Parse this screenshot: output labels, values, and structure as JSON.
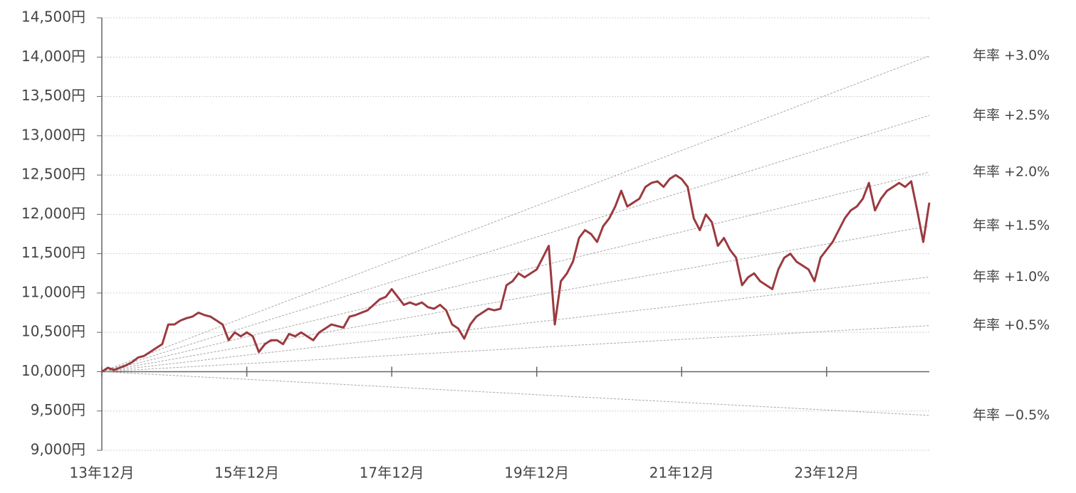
{
  "chart_data": {
    "type": "line",
    "x": [
      "2013-12",
      "2014-01",
      "2014-02",
      "2014-03",
      "2014-04",
      "2014-05",
      "2014-06",
      "2014-07",
      "2014-08",
      "2014-09",
      "2014-10",
      "2014-11",
      "2014-12",
      "2015-01",
      "2015-02",
      "2015-03",
      "2015-04",
      "2015-05",
      "2015-06",
      "2015-07",
      "2015-08",
      "2015-09",
      "2015-10",
      "2015-11",
      "2015-12",
      "2016-01",
      "2016-02",
      "2016-03",
      "2016-04",
      "2016-05",
      "2016-06",
      "2016-07",
      "2016-08",
      "2016-09",
      "2016-10",
      "2016-11",
      "2016-12",
      "2017-01",
      "2017-02",
      "2017-03",
      "2017-04",
      "2017-05",
      "2017-06",
      "2017-07",
      "2017-08",
      "2017-09",
      "2017-10",
      "2017-11",
      "2017-12",
      "2018-01",
      "2018-02",
      "2018-03",
      "2018-04",
      "2018-05",
      "2018-06",
      "2018-07",
      "2018-08",
      "2018-09",
      "2018-10",
      "2018-11",
      "2018-12",
      "2019-01",
      "2019-02",
      "2019-03",
      "2019-04",
      "2019-05",
      "2019-06",
      "2019-07",
      "2019-08",
      "2019-09",
      "2019-10",
      "2019-11",
      "2019-12",
      "2020-01",
      "2020-02",
      "2020-03",
      "2020-04",
      "2020-05",
      "2020-06",
      "2020-07",
      "2020-08",
      "2020-09",
      "2020-10",
      "2020-11",
      "2020-12",
      "2021-01",
      "2021-02",
      "2021-03",
      "2021-04",
      "2021-05",
      "2021-06",
      "2021-07",
      "2021-08",
      "2021-09",
      "2021-10",
      "2021-11",
      "2021-12",
      "2022-01",
      "2022-02",
      "2022-03",
      "2022-04",
      "2022-05",
      "2022-06",
      "2022-07",
      "2022-08",
      "2022-09",
      "2022-10",
      "2022-11",
      "2022-12",
      "2023-01",
      "2023-02",
      "2023-03",
      "2023-04",
      "2023-05",
      "2023-06",
      "2023-07",
      "2023-08",
      "2023-09",
      "2023-10",
      "2023-11",
      "2023-12",
      "2024-01",
      "2024-02",
      "2024-03",
      "2024-04",
      "2024-05",
      "2024-06",
      "2024-07",
      "2024-08",
      "2024-09",
      "2024-10",
      "2024-11",
      "2024-12",
      "2025-01",
      "2025-02",
      "2025-03",
      "2025-04",
      "2025-05"
    ],
    "series": [
      {
        "color": "#9b3a3f",
        "values": [
          10000,
          10050,
          10020,
          10050,
          10080,
          10120,
          10180,
          10200,
          10250,
          10300,
          10350,
          10600,
          10600,
          10650,
          10680,
          10700,
          10750,
          10720,
          10700,
          10650,
          10600,
          10400,
          10500,
          10450,
          10500,
          10450,
          10250,
          10350,
          10400,
          10400,
          10350,
          10480,
          10450,
          10500,
          10450,
          10400,
          10500,
          10550,
          10600,
          10580,
          10560,
          10700,
          10720,
          10750,
          10780,
          10850,
          10920,
          10950,
          11050,
          10950,
          10850,
          10880,
          10850,
          10880,
          10820,
          10800,
          10850,
          10780,
          10600,
          10550,
          10420,
          10600,
          10700,
          10750,
          10800,
          10780,
          10800,
          11100,
          11150,
          11250,
          11200,
          11250,
          11300,
          11450,
          11600,
          10600,
          11150,
          11250,
          11400,
          11700,
          11800,
          11750,
          11650,
          11850,
          11950,
          12100,
          12300,
          12100,
          12150,
          12200,
          12350,
          12400,
          12420,
          12350,
          12450,
          12500,
          12450,
          12350,
          11950,
          11800,
          12000,
          11900,
          11600,
          11700,
          11550,
          11450,
          11100,
          11200,
          11250,
          11150,
          11100,
          11050,
          11300,
          11450,
          11500,
          11400,
          11350,
          11300,
          11150,
          11450,
          11550,
          11650,
          11800,
          11950,
          12050,
          12100,
          12200,
          12400,
          12050,
          12200,
          12300,
          12350,
          12400,
          12350,
          12420,
          12050,
          11650,
          12150
        ]
      }
    ],
    "reference_lines": [
      {
        "name": "年率 +3.0%",
        "x": [
          "2013-12",
          "2025-05"
        ],
        "values": [
          10000,
          14015
        ]
      },
      {
        "name": "年率 +2.5%",
        "x": [
          "2013-12",
          "2025-05"
        ],
        "values": [
          10000,
          13258
        ]
      },
      {
        "name": "年率 +2.0%",
        "x": [
          "2013-12",
          "2025-05"
        ],
        "values": [
          10000,
          12537
        ]
      },
      {
        "name": "年率 +1.5%",
        "x": [
          "2013-12",
          "2025-05"
        ],
        "values": [
          10000,
          11853
        ]
      },
      {
        "name": "年率 +1.0%",
        "x": [
          "2013-12",
          "2025-05"
        ],
        "values": [
          10000,
          11203
        ]
      },
      {
        "name": "年率 +0.5%",
        "x": [
          "2013-12",
          "2025-05"
        ],
        "values": [
          10000,
          10586
        ]
      },
      {
        "name": "年率 −0.5%",
        "x": [
          "2013-12",
          "2025-05"
        ],
        "values": [
          10000,
          9444
        ]
      }
    ],
    "reference_color": "#a8a8a8",
    "xlim": [
      "2013-12",
      "2025-05"
    ],
    "xticks": [
      {
        "value": "2013-12",
        "label": "13年12月"
      },
      {
        "value": "2015-12",
        "label": "15年12月"
      },
      {
        "value": "2017-12",
        "label": "17年12月"
      },
      {
        "value": "2019-12",
        "label": "19年12月"
      },
      {
        "value": "2021-12",
        "label": "21年12月"
      },
      {
        "value": "2023-12",
        "label": "23年12月"
      }
    ],
    "ylim": [
      9000,
      14500
    ],
    "yticks": [
      {
        "value": 9000,
        "label": "9,000円"
      },
      {
        "value": 9500,
        "label": "9,500円"
      },
      {
        "value": 10000,
        "label": "10,000円"
      },
      {
        "value": 10500,
        "label": "10,500円"
      },
      {
        "value": 11000,
        "label": "11,000円"
      },
      {
        "value": 11500,
        "label": "11,500円"
      },
      {
        "value": 12000,
        "label": "12,000円"
      },
      {
        "value": 12500,
        "label": "12,500円"
      },
      {
        "value": 13000,
        "label": "13,000円"
      },
      {
        "value": 13500,
        "label": "13,500円"
      },
      {
        "value": 14000,
        "label": "14,000円"
      },
      {
        "value": 14500,
        "label": "14,500円"
      }
    ],
    "x_axis_at": 10000,
    "grid": true
  }
}
